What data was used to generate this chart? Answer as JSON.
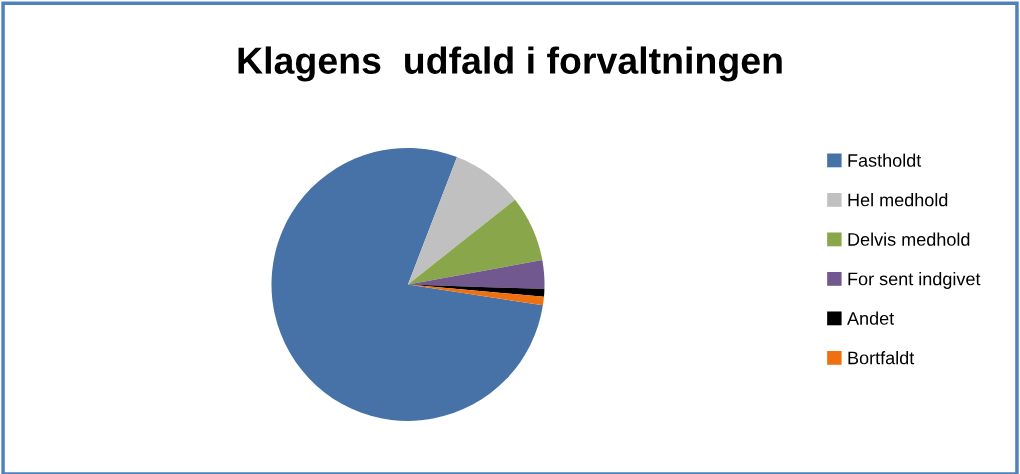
{
  "chart_data": {
    "type": "pie",
    "title": "Klagens  udfald i forvaltningen",
    "categories": [
      "Fastholdt",
      "Hel medhold",
      "Delvis medhold",
      "For sent indgivet",
      "Andet",
      "Bortfaldt"
    ],
    "values": [
      78.4,
      8.5,
      7.8,
      3.4,
      0.9,
      1.0
    ],
    "colors": [
      "#4672a8",
      "#c0c0c0",
      "#8aa64a",
      "#71588f",
      "#000000",
      "#f07010"
    ],
    "legend": "right"
  }
}
